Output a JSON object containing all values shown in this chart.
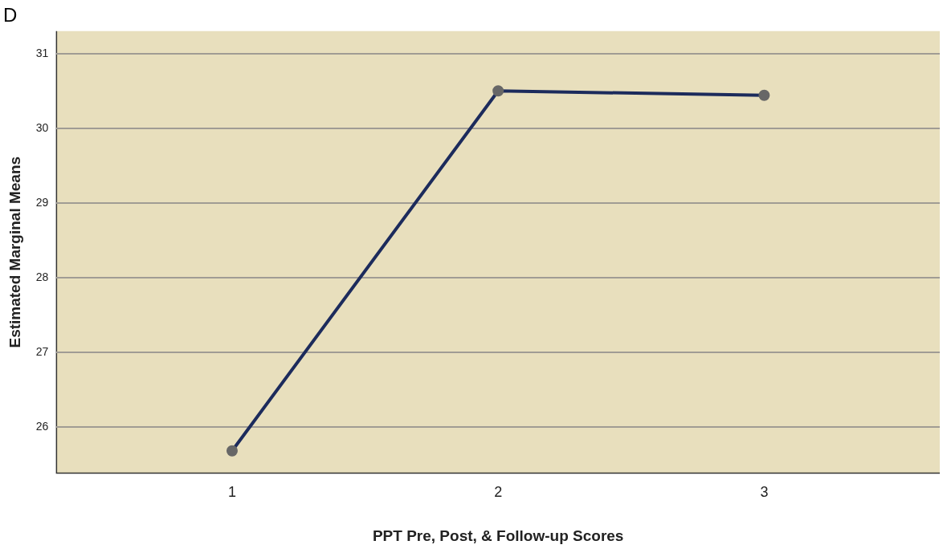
{
  "chart_data": {
    "type": "line",
    "title": "D",
    "xlabel": "PPT Pre, Post, & Follow-up Scores",
    "ylabel": "Estimated Marginal Means",
    "x": [
      1,
      2,
      3
    ],
    "series": [
      {
        "color": "#1c2b5c",
        "values": [
          25.68,
          30.5,
          30.44
        ]
      }
    ],
    "xlim": [
      0.34,
      3.66
    ],
    "xticks": [
      1,
      2,
      3
    ],
    "ylim": [
      25.38,
      31.3
    ],
    "yticks": [
      26,
      27,
      28,
      29,
      30,
      31
    ],
    "grid": "y",
    "marker": "circle",
    "line_style": "solid",
    "legend": false
  }
}
